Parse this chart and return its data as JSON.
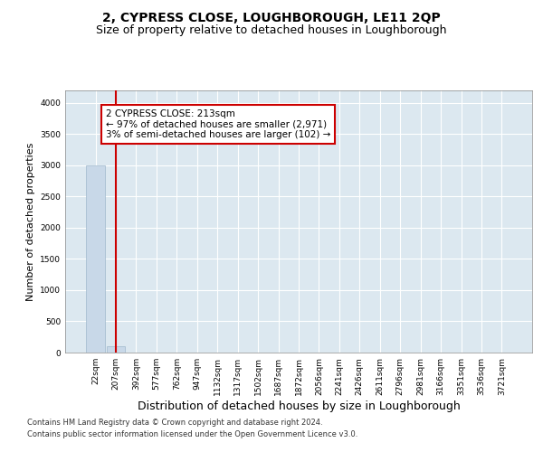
{
  "title": "2, CYPRESS CLOSE, LOUGHBOROUGH, LE11 2QP",
  "subtitle": "Size of property relative to detached houses in Loughborough",
  "xlabel": "Distribution of detached houses by size in Loughborough",
  "ylabel": "Number of detached properties",
  "footnote1": "Contains HM Land Registry data © Crown copyright and database right 2024.",
  "footnote2": "Contains public sector information licensed under the Open Government Licence v3.0.",
  "categories": [
    "22sqm",
    "207sqm",
    "392sqm",
    "577sqm",
    "762sqm",
    "947sqm",
    "1132sqm",
    "1317sqm",
    "1502sqm",
    "1687sqm",
    "1872sqm",
    "2056sqm",
    "2241sqm",
    "2426sqm",
    "2611sqm",
    "2796sqm",
    "2981sqm",
    "3166sqm",
    "3351sqm",
    "3536sqm",
    "3721sqm"
  ],
  "bar_values": [
    3000,
    100,
    0,
    0,
    0,
    0,
    0,
    0,
    0,
    0,
    0,
    0,
    0,
    0,
    0,
    0,
    0,
    0,
    0,
    0,
    0
  ],
  "bar_color": "#c8d8e8",
  "bar_edge_color": "#a0b8cc",
  "ylim": [
    0,
    4200
  ],
  "yticks": [
    0,
    500,
    1000,
    1500,
    2000,
    2500,
    3000,
    3500,
    4000
  ],
  "red_line_x": 1.0,
  "annotation_text_line1": "2 CYPRESS CLOSE: 213sqm",
  "annotation_text_line2": "← 97% of detached houses are smaller (2,971)",
  "annotation_text_line3": "3% of semi-detached houses are larger (102) →",
  "annotation_box_color": "#ffffff",
  "annotation_border_color": "#cc0000",
  "bg_color": "#dce8f0",
  "grid_color": "#ffffff",
  "title_fontsize": 10,
  "subtitle_fontsize": 9,
  "ylabel_fontsize": 8,
  "xlabel_fontsize": 9,
  "tick_fontsize": 6.5,
  "annotation_fontsize": 7.5,
  "footnote_fontsize": 6
}
